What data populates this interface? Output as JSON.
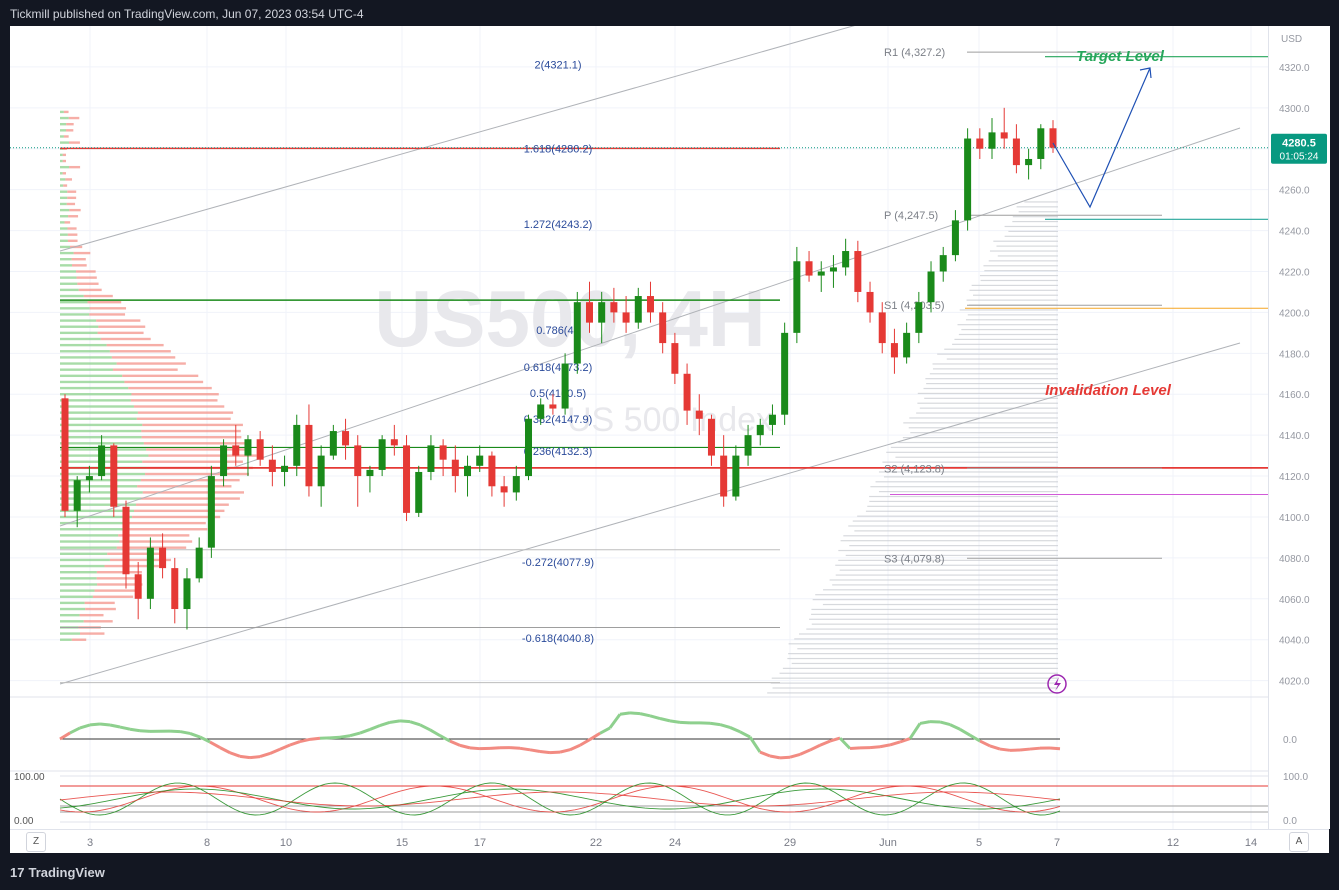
{
  "header": {
    "published": "Tickmill published on TradingView.com, Jun 07, 2023 03:54 UTC-4"
  },
  "footer": {
    "brand": "TradingView",
    "logo_mark": "17"
  },
  "watermark": {
    "symbol": "US500, 4H",
    "name": "US 500 Index"
  },
  "price_scale": {
    "currency": "USD",
    "ticks": [
      "4320.0",
      "4300.0",
      "4280.0",
      "4260.0",
      "4240.0",
      "4220.0",
      "4200.0",
      "4180.0",
      "4160.0",
      "4140.0",
      "4120.0",
      "4100.0",
      "4080.0",
      "4060.0",
      "4040.0",
      "4020.0"
    ],
    "last_price": "4280.5",
    "countdown": "01:05:24",
    "last_color": "#089981"
  },
  "time_scale": {
    "ticks": [
      "3",
      "8",
      "10",
      "15",
      "17",
      "22",
      "24",
      "29",
      "Jun",
      "5",
      "7",
      "12",
      "14"
    ]
  },
  "buttons": {
    "left": "Z",
    "right": "A"
  },
  "fib_levels": [
    {
      "label": "2(4321.1)",
      "value": 4321.1
    },
    {
      "label": "1.618(4280.2)",
      "value": 4280.2
    },
    {
      "label": "1.272(4243.2)",
      "value": 4243.2
    },
    {
      "label": "0.786(41",
      "value": 4191.3
    },
    {
      "label": "0.618(4173.2)",
      "value": 4173.2
    },
    {
      "label": "0.5(4160.5)",
      "value": 4160.5
    },
    {
      "label": "0.382(4147.9)",
      "value": 4147.9
    },
    {
      "label": "0.236(4132.3)",
      "value": 4132.3
    },
    {
      "label": "-0.272(4077.9)",
      "value": 4077.9
    },
    {
      "label": "-0.618(4040.8)",
      "value": 4040.8
    }
  ],
  "pivots": [
    {
      "label": "R1 (4,327.2)",
      "value": 4327.2
    },
    {
      "label": "P (4,247.5)",
      "value": 4247.5
    },
    {
      "label": "S1 (4,203.5)",
      "value": 4203.5
    },
    {
      "label": "S2 (4,123.8)",
      "value": 4123.8
    },
    {
      "label": "S3 (4,079.8)",
      "value": 4079.8
    }
  ],
  "annotations": {
    "target": "Target Level",
    "invalidation": "Invalidation Level"
  },
  "colors": {
    "up": "#1a8a1a",
    "down": "#e53935",
    "target": "#26a65b",
    "invalidation": "#e53935",
    "arrow": "#1e50b4"
  },
  "oscillator": {
    "zero_label": "0.0",
    "stoch_top": "100.00",
    "stoch_bottom": "0.00",
    "stoch_top_right": "100.0",
    "stoch_bottom_right": "0.0"
  },
  "chart_data": {
    "type": "candlestick",
    "symbol": "US500",
    "interval": "4H",
    "ylim": [
      4012,
      4340
    ],
    "price_levels": {
      "red_resistance": 4280.2,
      "green_support": 4206,
      "green_mid": 4134,
      "red_support": 4124,
      "lows": 4046,
      "bottom": 4019
    },
    "candles": [
      [
        4158,
        4160,
        4100,
        4103
      ],
      [
        4103,
        4120,
        4095,
        4118
      ],
      [
        4118,
        4125,
        4112,
        4120
      ],
      [
        4120,
        4140,
        4118,
        4135
      ],
      [
        4135,
        4136,
        4100,
        4105
      ],
      [
        4105,
        4108,
        4065,
        4072
      ],
      [
        4072,
        4078,
        4050,
        4060
      ],
      [
        4060,
        4090,
        4055,
        4085
      ],
      [
        4085,
        4092,
        4070,
        4075
      ],
      [
        4075,
        4080,
        4048,
        4055
      ],
      [
        4055,
        4075,
        4045,
        4070
      ],
      [
        4070,
        4090,
        4068,
        4085
      ],
      [
        4085,
        4125,
        4080,
        4120
      ],
      [
        4120,
        4138,
        4115,
        4135
      ],
      [
        4135,
        4145,
        4125,
        4130
      ],
      [
        4130,
        4140,
        4120,
        4138
      ],
      [
        4138,
        4142,
        4125,
        4128
      ],
      [
        4128,
        4135,
        4115,
        4122
      ],
      [
        4122,
        4130,
        4115,
        4125
      ],
      [
        4125,
        4150,
        4120,
        4145
      ],
      [
        4145,
        4155,
        4110,
        4115
      ],
      [
        4115,
        4135,
        4105,
        4130
      ],
      [
        4130,
        4145,
        4128,
        4142
      ],
      [
        4142,
        4148,
        4128,
        4135
      ],
      [
        4135,
        4140,
        4105,
        4120
      ],
      [
        4120,
        4125,
        4112,
        4123
      ],
      [
        4123,
        4140,
        4120,
        4138
      ],
      [
        4138,
        4145,
        4130,
        4135
      ],
      [
        4135,
        4140,
        4098,
        4102
      ],
      [
        4102,
        4125,
        4100,
        4122
      ],
      [
        4122,
        4140,
        4118,
        4135
      ],
      [
        4135,
        4138,
        4120,
        4128
      ],
      [
        4128,
        4135,
        4112,
        4120
      ],
      [
        4120,
        4130,
        4110,
        4125
      ],
      [
        4125,
        4135,
        4122,
        4130
      ],
      [
        4130,
        4132,
        4110,
        4115
      ],
      [
        4115,
        4120,
        4105,
        4112
      ],
      [
        4112,
        4125,
        4108,
        4120
      ],
      [
        4120,
        4150,
        4118,
        4148
      ],
      [
        4148,
        4158,
        4145,
        4155
      ],
      [
        4155,
        4160,
        4150,
        4153
      ],
      [
        4153,
        4180,
        4150,
        4175
      ],
      [
        4175,
        4210,
        4170,
        4205
      ],
      [
        4205,
        4215,
        4190,
        4195
      ],
      [
        4195,
        4210,
        4185,
        4205
      ],
      [
        4205,
        4212,
        4195,
        4200
      ],
      [
        4200,
        4208,
        4190,
        4195
      ],
      [
        4195,
        4212,
        4192,
        4208
      ],
      [
        4208,
        4215,
        4195,
        4200
      ],
      [
        4200,
        4205,
        4180,
        4185
      ],
      [
        4185,
        4190,
        4165,
        4170
      ],
      [
        4170,
        4175,
        4145,
        4152
      ],
      [
        4152,
        4160,
        4140,
        4148
      ],
      [
        4148,
        4150,
        4125,
        4130
      ],
      [
        4130,
        4140,
        4105,
        4110
      ],
      [
        4110,
        4135,
        4108,
        4130
      ],
      [
        4130,
        4145,
        4125,
        4140
      ],
      [
        4140,
        4148,
        4135,
        4145
      ],
      [
        4145,
        4155,
        4140,
        4150
      ],
      [
        4150,
        4195,
        4145,
        4190
      ],
      [
        4190,
        4232,
        4185,
        4225
      ],
      [
        4225,
        4230,
        4215,
        4218
      ],
      [
        4218,
        4225,
        4210,
        4220
      ],
      [
        4220,
        4228,
        4212,
        4222
      ],
      [
        4222,
        4236,
        4218,
        4230
      ],
      [
        4230,
        4235,
        4205,
        4210
      ],
      [
        4210,
        4215,
        4195,
        4200
      ],
      [
        4200,
        4205,
        4180,
        4185
      ],
      [
        4185,
        4192,
        4170,
        4178
      ],
      [
        4178,
        4195,
        4175,
        4190
      ],
      [
        4190,
        4210,
        4185,
        4205
      ],
      [
        4205,
        4225,
        4200,
        4220
      ],
      [
        4220,
        4232,
        4215,
        4228
      ],
      [
        4228,
        4250,
        4225,
        4245
      ],
      [
        4245,
        4290,
        4240,
        4285
      ],
      [
        4285,
        4290,
        4275,
        4280
      ],
      [
        4280,
        4295,
        4275,
        4288
      ],
      [
        4288,
        4300,
        4280,
        4285
      ],
      [
        4285,
        4292,
        4268,
        4272
      ],
      [
        4272,
        4280,
        4265,
        4275
      ],
      [
        4275,
        4292,
        4270,
        4290
      ],
      [
        4290,
        4294,
        4278,
        4280.5
      ]
    ]
  }
}
